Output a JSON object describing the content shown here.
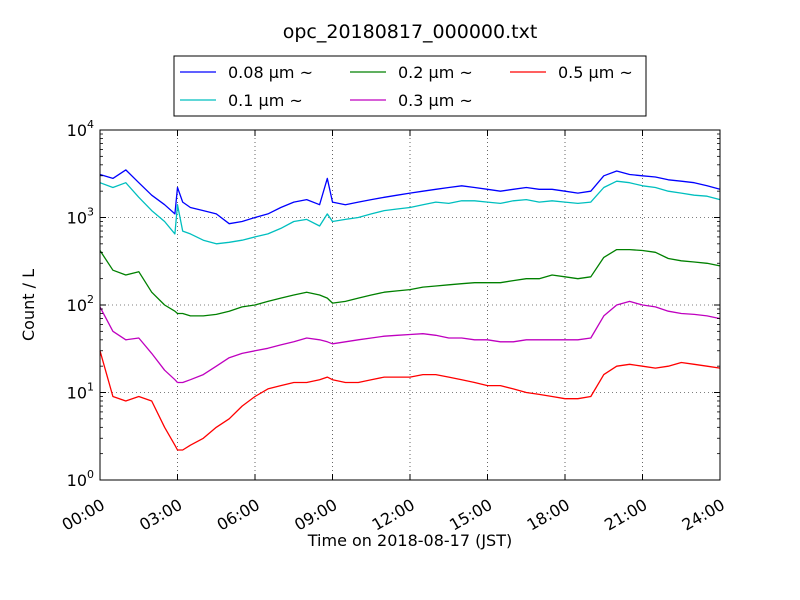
{
  "chart_data": {
    "type": "line",
    "title": "opc_20180817_000000.txt",
    "xlabel": "Time on 2018-08-17 (JST)",
    "ylabel": "Count / L",
    "xscale": "linear",
    "yscale": "log",
    "grid": true,
    "legend_position": "top",
    "xlim": [
      0,
      24
    ],
    "ylim": [
      1,
      10000
    ],
    "x_tick_values": [
      0,
      3,
      6,
      9,
      12,
      15,
      18,
      21,
      24
    ],
    "x_tick_labels": [
      "00:00",
      "03:00",
      "06:00",
      "09:00",
      "12:00",
      "15:00",
      "18:00",
      "21:00",
      "24:00"
    ],
    "y_tick_values": [
      1,
      10,
      100,
      1000,
      10000
    ],
    "y_tick_labels": [
      {
        "base": "10",
        "exp": "0"
      },
      {
        "base": "10",
        "exp": "1"
      },
      {
        "base": "10",
        "exp": "2"
      },
      {
        "base": "10",
        "exp": "3"
      },
      {
        "base": "10",
        "exp": "4"
      }
    ],
    "x": [
      0,
      0.5,
      1,
      1.5,
      2,
      2.5,
      2.9,
      3.0,
      3.2,
      3.5,
      4,
      4.5,
      5,
      5.5,
      6,
      6.5,
      7,
      7.5,
      8,
      8.5,
      8.8,
      9,
      9.5,
      10,
      10.5,
      11,
      11.5,
      12,
      12.5,
      13,
      13.5,
      14,
      14.5,
      15,
      15.5,
      16,
      16.5,
      17,
      17.5,
      18,
      18.5,
      19,
      19.5,
      20,
      20.5,
      21,
      21.5,
      22,
      22.5,
      23,
      23.5,
      24
    ],
    "series": [
      {
        "name": "0.08 μm ~",
        "color": "#0000ff",
        "values": [
          3100,
          2800,
          3500,
          2500,
          1800,
          1400,
          1100,
          2200,
          1500,
          1300,
          1200,
          1100,
          850,
          900,
          1000,
          1100,
          1300,
          1500,
          1600,
          1400,
          2800,
          1500,
          1400,
          1500,
          1600,
          1700,
          1800,
          1900,
          2000,
          2100,
          2200,
          2300,
          2200,
          2100,
          2000,
          2100,
          2200,
          2100,
          2100,
          2000,
          1900,
          2000,
          3000,
          3400,
          3100,
          3000,
          2900,
          2700,
          2600,
          2500,
          2300,
          2100
        ]
      },
      {
        "name": "0.1 μm ~",
        "color": "#00bfbf",
        "values": [
          2500,
          2200,
          2500,
          1700,
          1200,
          900,
          650,
          1400,
          700,
          650,
          550,
          500,
          520,
          550,
          600,
          650,
          750,
          900,
          950,
          800,
          1100,
          900,
          950,
          1000,
          1100,
          1200,
          1250,
          1300,
          1400,
          1500,
          1450,
          1550,
          1550,
          1500,
          1450,
          1550,
          1600,
          1500,
          1550,
          1500,
          1450,
          1500,
          2200,
          2600,
          2500,
          2300,
          2200,
          2000,
          1900,
          1800,
          1750,
          1600
        ]
      },
      {
        "name": "0.2 μm ~",
        "color": "#008000",
        "values": [
          420,
          250,
          220,
          240,
          140,
          100,
          85,
          80,
          80,
          75,
          75,
          78,
          85,
          95,
          100,
          110,
          120,
          130,
          140,
          130,
          120,
          105,
          110,
          120,
          130,
          140,
          145,
          150,
          160,
          165,
          170,
          175,
          180,
          180,
          180,
          190,
          200,
          200,
          220,
          210,
          200,
          210,
          350,
          430,
          430,
          420,
          400,
          340,
          320,
          310,
          300,
          280
        ]
      },
      {
        "name": "0.3 μm ~",
        "color": "#bf00bf",
        "values": [
          95,
          50,
          40,
          42,
          28,
          18,
          14,
          13,
          13,
          14,
          16,
          20,
          25,
          28,
          30,
          32,
          35,
          38,
          42,
          40,
          38,
          36,
          38,
          40,
          42,
          44,
          45,
          46,
          47,
          45,
          42,
          42,
          40,
          40,
          38,
          38,
          40,
          40,
          40,
          40,
          40,
          42,
          75,
          100,
          110,
          100,
          95,
          85,
          80,
          78,
          75,
          70
        ]
      },
      {
        "name": "0.5 μm ~",
        "color": "#ff0000",
        "values": [
          30,
          9,
          8,
          9,
          8,
          4,
          2.5,
          2.2,
          2.2,
          2.5,
          3,
          4,
          5,
          7,
          9,
          11,
          12,
          13,
          13,
          14,
          15,
          14,
          13,
          13,
          14,
          15,
          15,
          15,
          16,
          16,
          15,
          14,
          13,
          12,
          12,
          11,
          10,
          9.5,
          9,
          8.5,
          8.5,
          9,
          16,
          20,
          21,
          20,
          19,
          20,
          22,
          21,
          20,
          19
        ]
      }
    ]
  }
}
